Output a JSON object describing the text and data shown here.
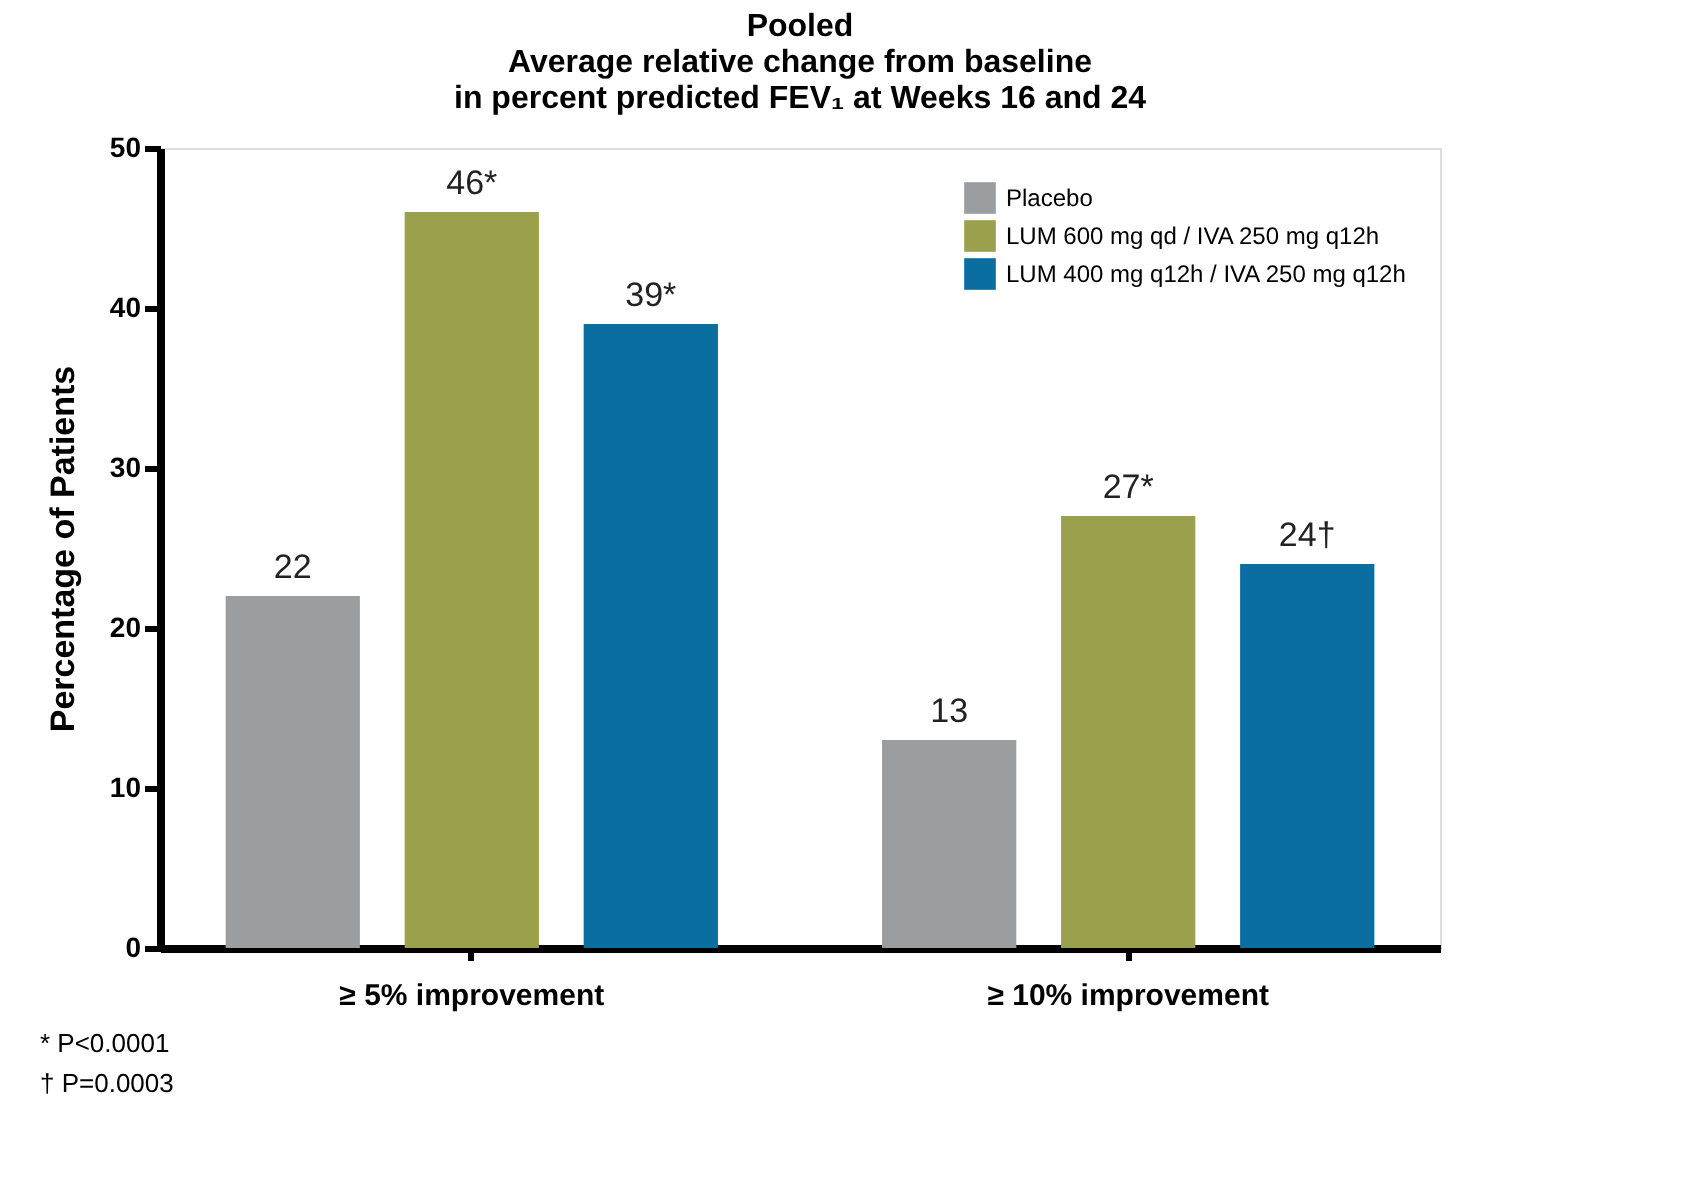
{
  "chart_data": {
    "type": "bar",
    "title": "Pooled\nAverage relative change from baseline\nin percent predicted FEV₁ at Weeks 16 and 24",
    "ylabel": "Percentage of Patients",
    "categories": [
      "≥ 5% improvement",
      "≥ 10% improvement"
    ],
    "series": [
      {
        "name": "Placebo",
        "color": "#9a9ea1",
        "values": [
          22,
          13
        ],
        "value_labels": [
          "22",
          "13"
        ]
      },
      {
        "name": "LUM 600 mg qd / IVA 250 mg q12h",
        "color": "#9aa04b",
        "values": [
          46,
          27
        ],
        "value_labels": [
          "46*",
          "27*"
        ]
      },
      {
        "name": "LUM 400 mg q12h / IVA 250 mg q12h",
        "color": "#0a6fa0",
        "values": [
          39,
          24
        ],
        "value_labels": [
          "39*",
          "24†"
        ]
      }
    ],
    "ylim": [
      0,
      50
    ],
    "yticks": [
      0,
      10,
      20,
      30,
      40,
      50
    ],
    "grid": false,
    "legend": "top right",
    "annotations": [
      "* P<0.0001",
      "† P=0.0003"
    ]
  }
}
